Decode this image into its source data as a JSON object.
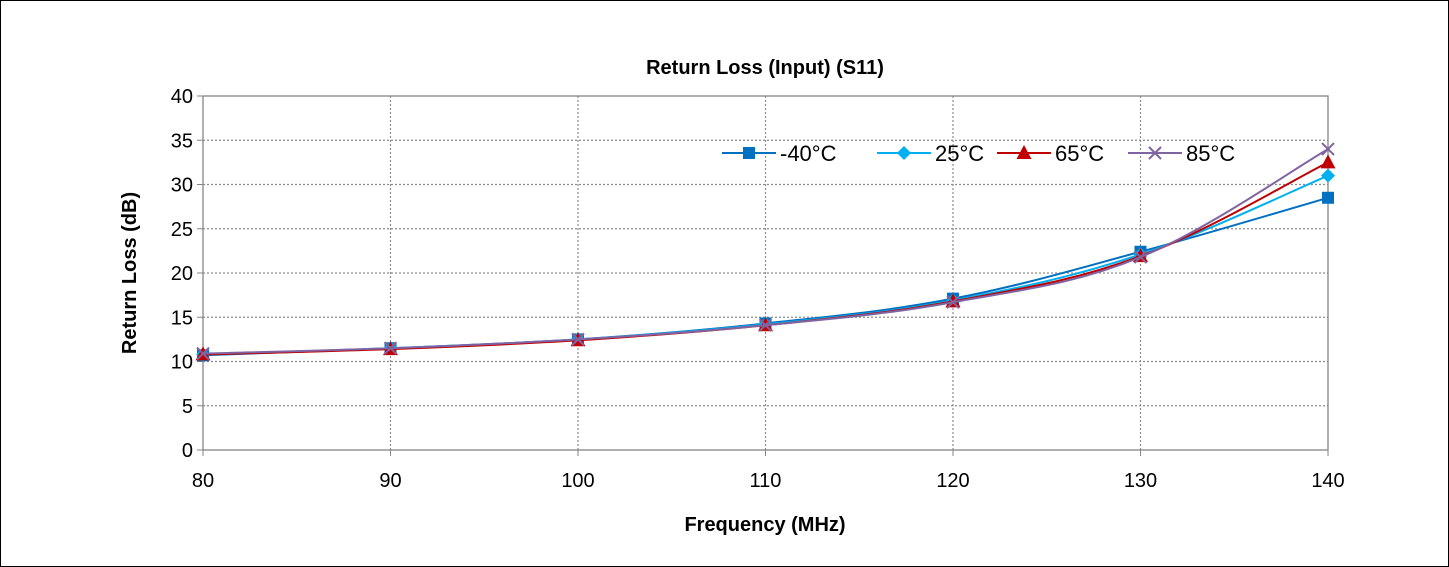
{
  "chart_data": {
    "type": "line",
    "title": "Return Loss (Input) (S11)",
    "xlabel": "Frequency (MHz)",
    "ylabel": "Return Loss (dB)",
    "x": [
      80,
      90,
      100,
      110,
      120,
      130,
      140
    ],
    "xlim": [
      80,
      140
    ],
    "ylim": [
      0,
      40
    ],
    "xticks": [
      80,
      90,
      100,
      110,
      120,
      130,
      140
    ],
    "yticks": [
      0,
      5,
      10,
      15,
      20,
      25,
      30,
      35,
      40
    ],
    "grid": true,
    "legend_position": "top-right",
    "series": [
      {
        "name": "-40°C",
        "color": "#0070C0",
        "marker": "square",
        "values": [
          10.7,
          11.5,
          12.5,
          14.3,
          17.1,
          22.4,
          28.5
        ]
      },
      {
        "name": "25°C",
        "color": "#00B0F0",
        "marker": "diamond",
        "values": [
          10.8,
          11.5,
          12.5,
          14.2,
          16.9,
          22.1,
          31.0
        ]
      },
      {
        "name": "65°C",
        "color": "#C00000",
        "marker": "triangle",
        "values": [
          10.8,
          11.4,
          12.4,
          14.1,
          16.8,
          21.9,
          32.5
        ]
      },
      {
        "name": "85°C",
        "color": "#8064A2",
        "marker": "x",
        "values": [
          10.9,
          11.5,
          12.5,
          14.1,
          16.7,
          21.8,
          34.0
        ]
      }
    ]
  }
}
